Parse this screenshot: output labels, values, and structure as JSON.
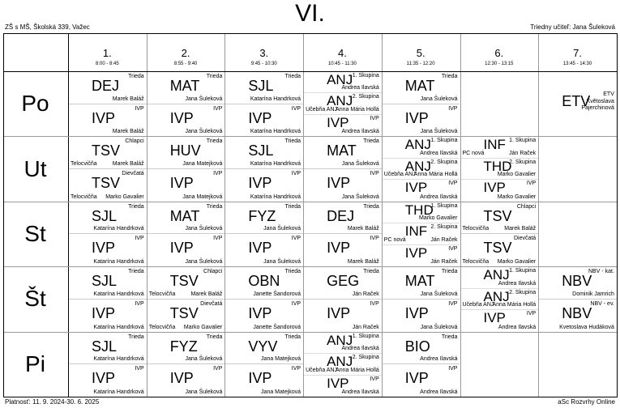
{
  "header": {
    "class_name": "VI.",
    "school": "ZŠ s MŠ, Školská 339, Važec",
    "class_teacher": "Triedny učiteľ: Jana Šuleková"
  },
  "footer": {
    "validity": "Platnosť: 11. 9. 2024-30. 6. 2025",
    "generator": "aSc Rozvrhy Online"
  },
  "periods": [
    {
      "num": "1.",
      "time": "8:00 - 8:45"
    },
    {
      "num": "2.",
      "time": "8:55 - 9:40"
    },
    {
      "num": "3.",
      "time": "9:45 - 10:30"
    },
    {
      "num": "4.",
      "time": "10:45 - 11:30"
    },
    {
      "num": "5.",
      "time": "11:35 - 12:20"
    },
    {
      "num": "6.",
      "time": "12:30 - 13:15"
    },
    {
      "num": "7.",
      "time": "13:45 - 14:30"
    }
  ],
  "days": [
    {
      "name": "Po",
      "cells": [
        {
          "type": "halves",
          "entries": [
            {
              "subject": "DEJ",
              "tag": "Trieda",
              "teacher": "Marek Baláž",
              "room": ""
            },
            {
              "subject": "IVP",
              "tag": "IVP",
              "teacher": "Marek Baláž",
              "room": ""
            }
          ]
        },
        {
          "type": "halves",
          "entries": [
            {
              "subject": "MAT",
              "tag": "Trieda",
              "teacher": "Jana Šuleková",
              "room": ""
            },
            {
              "subject": "IVP",
              "tag": "IVP",
              "teacher": "Jana Šuleková",
              "room": ""
            }
          ]
        },
        {
          "type": "halves",
          "entries": [
            {
              "subject": "SJL",
              "tag": "Trieda",
              "teacher": "Katarína Handrková",
              "room": ""
            },
            {
              "subject": "IVP",
              "tag": "IVP",
              "teacher": "Katarína Handrková",
              "room": ""
            }
          ]
        },
        {
          "type": "thirds",
          "entries": [
            {
              "subject": "ANJ",
              "tag": "1. Skupina",
              "teacher": "Andrea Ilavská",
              "room": ""
            },
            {
              "subject": "ANJ",
              "tag": "2. Skupina",
              "teacher": "Anna Mária Hollá",
              "room": "Učebňa ANJ"
            },
            {
              "subject": "IVP",
              "tag": "IVP",
              "teacher": "Andrea Ilavská",
              "room": ""
            }
          ]
        },
        {
          "type": "halves",
          "entries": [
            {
              "subject": "MAT",
              "tag": "Trieda",
              "teacher": "Jana Šuleková",
              "room": ""
            },
            {
              "subject": "IVP",
              "tag": "IVP",
              "teacher": "Jana Šuleková",
              "room": ""
            }
          ]
        },
        {
          "type": "empty",
          "entries": []
        },
        {
          "type": "single",
          "entries": [
            {
              "subject": "ETV",
              "tag": "ETV",
              "teacher": "Květoslava Pajerchinová",
              "room": ""
            }
          ]
        }
      ]
    },
    {
      "name": "Ut",
      "cells": [
        {
          "type": "halves",
          "entries": [
            {
              "subject": "TSV",
              "tag": "Chlapci",
              "teacher": "Marek Baláž",
              "room": "Telocvičňa"
            },
            {
              "subject": "TSV",
              "tag": "Dievčatá",
              "teacher": "Marko Gavalier",
              "room": "Telocvičňa"
            }
          ]
        },
        {
          "type": "halves",
          "entries": [
            {
              "subject": "HUV",
              "tag": "Trieda",
              "teacher": "Jana Matejková",
              "room": ""
            },
            {
              "subject": "IVP",
              "tag": "IVP",
              "teacher": "Jana Matejková",
              "room": ""
            }
          ]
        },
        {
          "type": "halves",
          "entries": [
            {
              "subject": "SJL",
              "tag": "Trieda",
              "teacher": "Katarína Handrková",
              "room": ""
            },
            {
              "subject": "IVP",
              "tag": "IVP",
              "teacher": "Katarína Handrková",
              "room": ""
            }
          ]
        },
        {
          "type": "halves",
          "entries": [
            {
              "subject": "MAT",
              "tag": "Trieda",
              "teacher": "Jana Šuleková",
              "room": ""
            },
            {
              "subject": "IVP",
              "tag": "IVP",
              "teacher": "Jana Šuleková",
              "room": ""
            }
          ]
        },
        {
          "type": "thirds",
          "entries": [
            {
              "subject": "ANJ",
              "tag": "1. Skupina",
              "teacher": "Andrea Ilavská",
              "room": ""
            },
            {
              "subject": "ANJ",
              "tag": "2. Skupina",
              "teacher": "Anna Mária Hollá",
              "room": "Učebňa ANJ"
            },
            {
              "subject": "IVP",
              "tag": "IVP",
              "teacher": "Andrea Ilavská",
              "room": ""
            }
          ]
        },
        {
          "type": "thirds",
          "entries": [
            {
              "subject": "INF",
              "tag": "1. Skupina",
              "teacher": "Ján Raček",
              "room": "PC nová"
            },
            {
              "subject": "THD",
              "tag": "2. Skupina",
              "teacher": "Marko Gavalier",
              "room": ""
            },
            {
              "subject": "IVP",
              "tag": "IVP",
              "teacher": "Marko Gavalier",
              "room": ""
            }
          ]
        },
        {
          "type": "empty",
          "entries": []
        }
      ]
    },
    {
      "name": "St",
      "cells": [
        {
          "type": "halves",
          "entries": [
            {
              "subject": "SJL",
              "tag": "Trieda",
              "teacher": "Katarína Handrková",
              "room": ""
            },
            {
              "subject": "IVP",
              "tag": "IVP",
              "teacher": "Katarína Handrková",
              "room": ""
            }
          ]
        },
        {
          "type": "halves",
          "entries": [
            {
              "subject": "MAT",
              "tag": "Trieda",
              "teacher": "Jana Šuleková",
              "room": ""
            },
            {
              "subject": "IVP",
              "tag": "IVP",
              "teacher": "Jana Šuleková",
              "room": ""
            }
          ]
        },
        {
          "type": "halves",
          "entries": [
            {
              "subject": "FYZ",
              "tag": "Trieda",
              "teacher": "Jana Šuleková",
              "room": ""
            },
            {
              "subject": "IVP",
              "tag": "IVP",
              "teacher": "Jana Šuleková",
              "room": ""
            }
          ]
        },
        {
          "type": "halves",
          "entries": [
            {
              "subject": "DEJ",
              "tag": "Trieda",
              "teacher": "Marek Baláž",
              "room": ""
            },
            {
              "subject": "IVP",
              "tag": "IVP",
              "teacher": "Marek Baláž",
              "room": ""
            }
          ]
        },
        {
          "type": "thirds",
          "entries": [
            {
              "subject": "THD",
              "tag": "1. Skupina",
              "teacher": "Marko Gavalier",
              "room": ""
            },
            {
              "subject": "INF",
              "tag": "2. Skupina",
              "teacher": "Ján Raček",
              "room": "PC nová"
            },
            {
              "subject": "IVP",
              "tag": "IVP",
              "teacher": "Ján Raček",
              "room": ""
            }
          ]
        },
        {
          "type": "halves",
          "entries": [
            {
              "subject": "TSV",
              "tag": "Chlapci",
              "teacher": "Marek Baláž",
              "room": "Telocvičňa"
            },
            {
              "subject": "TSV",
              "tag": "Dievčatá",
              "teacher": "Marko Gavalier",
              "room": "Telocvičňa"
            }
          ]
        },
        {
          "type": "empty",
          "entries": []
        }
      ]
    },
    {
      "name": "Št",
      "cells": [
        {
          "type": "halves",
          "entries": [
            {
              "subject": "SJL",
              "tag": "Trieda",
              "teacher": "Katarína Handrková",
              "room": ""
            },
            {
              "subject": "IVP",
              "tag": "IVP",
              "teacher": "Katarína Handrková",
              "room": ""
            }
          ]
        },
        {
          "type": "halves",
          "entries": [
            {
              "subject": "TSV",
              "tag": "Chlapci",
              "teacher": "Marek Baláž",
              "room": "Telocvičňa"
            },
            {
              "subject": "TSV",
              "tag": "Dievčatá",
              "teacher": "Marko Gavalier",
              "room": "Telocvičňa"
            }
          ]
        },
        {
          "type": "halves",
          "entries": [
            {
              "subject": "OBN",
              "tag": "Trieda",
              "teacher": "Janette Šandorová",
              "room": ""
            },
            {
              "subject": "IVP",
              "tag": "IVP",
              "teacher": "Janette Šandorová",
              "room": ""
            }
          ]
        },
        {
          "type": "halves",
          "entries": [
            {
              "subject": "GEG",
              "tag": "Trieda",
              "teacher": "Ján Raček",
              "room": ""
            },
            {
              "subject": "IVP",
              "tag": "IVP",
              "teacher": "Ján Raček",
              "room": ""
            }
          ]
        },
        {
          "type": "halves",
          "entries": [
            {
              "subject": "MAT",
              "tag": "Trieda",
              "teacher": "Jana Šuleková",
              "room": ""
            },
            {
              "subject": "IVP",
              "tag": "IVP",
              "teacher": "Jana Šuleková",
              "room": ""
            }
          ]
        },
        {
          "type": "thirds",
          "entries": [
            {
              "subject": "ANJ",
              "tag": "1. Skupina",
              "teacher": "Andrea Ilavská",
              "room": ""
            },
            {
              "subject": "ANJ",
              "tag": "2. Skupina",
              "teacher": "Anna Mária Hollá",
              "room": "Učebňa ANJ"
            },
            {
              "subject": "IVP",
              "tag": "IVP",
              "teacher": "Andrea Ilavská",
              "room": ""
            }
          ]
        },
        {
          "type": "halves",
          "entries": [
            {
              "subject": "NBV",
              "tag": "NBV - kat.",
              "teacher": "Dominik Jamrich",
              "room": ""
            },
            {
              "subject": "NBV",
              "tag": "NBV - ev.",
              "teacher": "Kvetoslava Hudáková",
              "room": ""
            }
          ]
        }
      ]
    },
    {
      "name": "Pi",
      "cells": [
        {
          "type": "halves",
          "entries": [
            {
              "subject": "SJL",
              "tag": "Trieda",
              "teacher": "Katarína Handrková",
              "room": ""
            },
            {
              "subject": "IVP",
              "tag": "IVP",
              "teacher": "Katarína Handrková",
              "room": ""
            }
          ]
        },
        {
          "type": "halves",
          "entries": [
            {
              "subject": "FYZ",
              "tag": "Trieda",
              "teacher": "Jana Šuleková",
              "room": ""
            },
            {
              "subject": "IVP",
              "tag": "IVP",
              "teacher": "Jana Šuleková",
              "room": ""
            }
          ]
        },
        {
          "type": "halves",
          "entries": [
            {
              "subject": "VYV",
              "tag": "Trieda",
              "teacher": "Jana Matejková",
              "room": ""
            },
            {
              "subject": "IVP",
              "tag": "IVP",
              "teacher": "Jana Matejková",
              "room": ""
            }
          ]
        },
        {
          "type": "thirds",
          "entries": [
            {
              "subject": "ANJ",
              "tag": "1. Skupina",
              "teacher": "Andrea Ilavská",
              "room": ""
            },
            {
              "subject": "ANJ",
              "tag": "2. Skupina",
              "teacher": "Anna Mária Hollá",
              "room": "Učebňa ANJ"
            },
            {
              "subject": "IVP",
              "tag": "IVP",
              "teacher": "Andrea Ilavská",
              "room": ""
            }
          ]
        },
        {
          "type": "halves",
          "entries": [
            {
              "subject": "BIO",
              "tag": "Trieda",
              "teacher": "Andrea Ilavská",
              "room": ""
            },
            {
              "subject": "IVP",
              "tag": "IVP",
              "teacher": "Andrea Ilavská",
              "room": ""
            }
          ]
        },
        {
          "type": "empty",
          "entries": []
        },
        {
          "type": "empty",
          "entries": []
        }
      ]
    }
  ]
}
